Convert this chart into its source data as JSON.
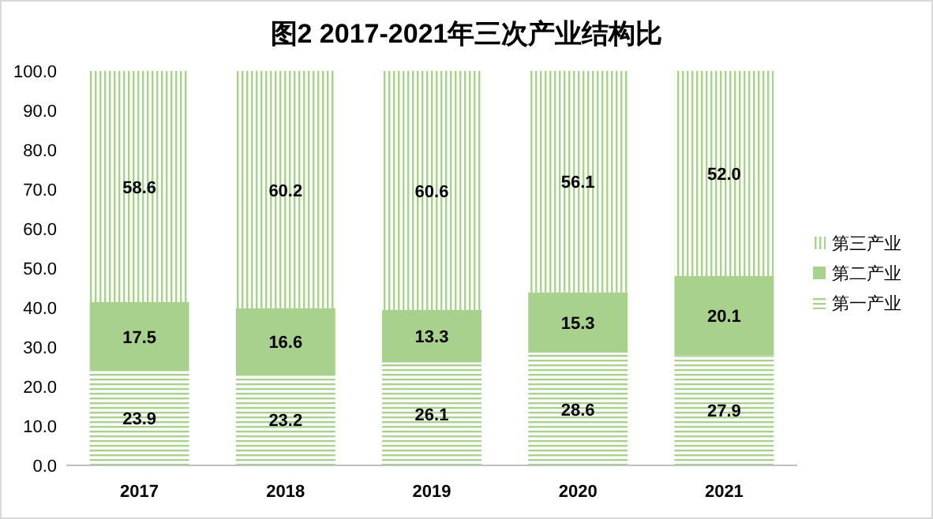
{
  "chart_data": {
    "type": "bar",
    "title": "图2 2017-2021年三次产业结构比",
    "stacked": true,
    "legend": "right",
    "categories": [
      "2017",
      "2018",
      "2019",
      "2020",
      "2021"
    ],
    "series": [
      {
        "name": "第一产业",
        "color": "#a9d18e",
        "values": [
          23.9,
          23.2,
          26.1,
          28.6,
          27.9
        ],
        "value_labels": [
          "23.9",
          "23.2",
          "26.1",
          "28.6",
          "27.9"
        ]
      },
      {
        "name": "第二产业",
        "color": "#a9d18e",
        "values": [
          17.5,
          16.6,
          13.3,
          15.3,
          20.1
        ],
        "value_labels": [
          "17.5",
          "16.6",
          "13.3",
          "15.3",
          "20.1"
        ]
      },
      {
        "name": "第三产业",
        "color": "#a9d18e",
        "values": [
          58.6,
          60.2,
          60.6,
          56.1,
          52.0
        ],
        "value_labels": [
          "58.6",
          "60.2",
          "60.6",
          "56.1",
          "52.0"
        ]
      }
    ],
    "ylim": [
      0,
      100
    ],
    "yticks": [
      {
        "value": 0,
        "label": "0.0"
      },
      {
        "value": 10,
        "label": "10.0"
      },
      {
        "value": 20,
        "label": "20.0"
      },
      {
        "value": 30,
        "label": "30.0"
      },
      {
        "value": 40,
        "label": "40.0"
      },
      {
        "value": 50,
        "label": "50.0"
      },
      {
        "value": 60,
        "label": "60.0"
      },
      {
        "value": 70,
        "label": "70.0"
      },
      {
        "value": 80,
        "label": "80.0"
      },
      {
        "value": 90,
        "label": "90.0"
      },
      {
        "value": 100,
        "label": "100.0"
      }
    ]
  }
}
